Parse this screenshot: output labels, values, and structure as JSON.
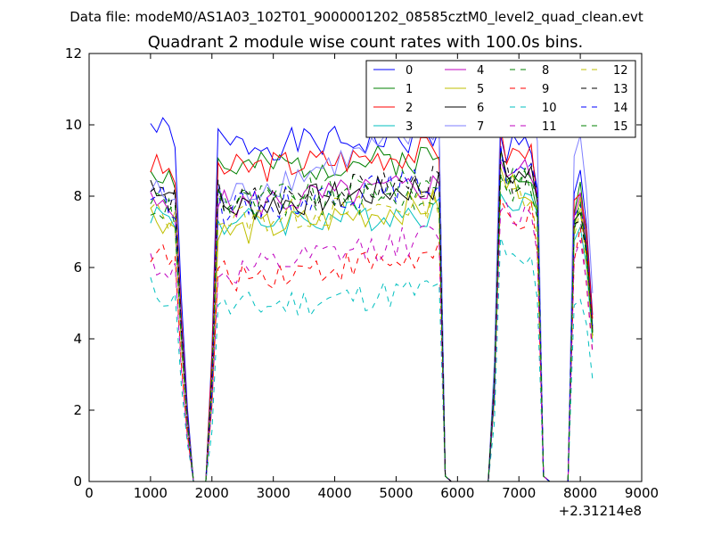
{
  "header": {
    "suptitle": "Data file: modeM0/AS1A03_102T01_9000001202_08585cztM0_level2_quad_clean.evt"
  },
  "chart_data": {
    "type": "line",
    "title": "Quadrant 2 module wise count rates with 100.0s bins.",
    "xlabel": "",
    "ylabel": "",
    "x_offset_label": "+2.31214e8",
    "xlim": [
      0,
      9000
    ],
    "ylim": [
      0,
      12
    ],
    "xticks": [
      0,
      1000,
      2000,
      3000,
      4000,
      5000,
      6000,
      7000,
      8000,
      9000
    ],
    "yticks": [
      0,
      2,
      4,
      6,
      8,
      10,
      12
    ],
    "grid": false,
    "legend_placement": "top-right",
    "legend_columns": 4,
    "x": [
      1000,
      1100,
      1200,
      1300,
      1400,
      1500,
      1600,
      1700,
      1800,
      1900,
      2000,
      2100,
      2200,
      2300,
      2400,
      2500,
      2600,
      2700,
      2800,
      2900,
      3000,
      3100,
      3200,
      3300,
      3400,
      3500,
      3600,
      3700,
      3800,
      3900,
      4000,
      4100,
      4200,
      4300,
      4400,
      4500,
      4600,
      4700,
      4800,
      4900,
      5000,
      5100,
      5200,
      5300,
      5400,
      5500,
      5600,
      5700,
      5800,
      5900,
      6000,
      6100,
      6200,
      6300,
      6400,
      6500,
      6600,
      6700,
      6800,
      6900,
      7000,
      7100,
      7200,
      7300,
      7400,
      7500,
      7600,
      7700,
      7800,
      7900,
      8000,
      8100,
      8200
    ],
    "segments": [
      {
        "start": 0,
        "end": 6,
        "dir": "down"
      },
      {
        "start": 7,
        "end": 9,
        "dir": "zero"
      },
      {
        "start": 10,
        "end": 47,
        "dir": "middle"
      },
      {
        "start": 48,
        "end": 48,
        "dir": "drop"
      },
      {
        "start": 49,
        "end": 55,
        "dir": "zero"
      },
      {
        "start": 56,
        "end": 63,
        "dir": "middle"
      },
      {
        "start": 64,
        "end": 64,
        "dir": "drop"
      },
      {
        "start": 65,
        "end": 68,
        "dir": "zero"
      },
      {
        "start": 69,
        "end": 72,
        "dir": "up"
      }
    ],
    "series": [
      {
        "name": "0",
        "color": "#0000ff",
        "dash": "solid",
        "levels": [
          10.0,
          9.4,
          9.3,
          9.6,
          8.9
        ],
        "seed": 1
      },
      {
        "name": "1",
        "color": "#008000",
        "dash": "solid",
        "levels": [
          8.8,
          8.7,
          8.6,
          9.1,
          8.3
        ],
        "seed": 2
      },
      {
        "name": "2",
        "color": "#ff0000",
        "dash": "solid",
        "levels": [
          8.9,
          8.7,
          9.0,
          9.3,
          8.7
        ],
        "seed": 3
      },
      {
        "name": "3",
        "color": "#00bfbf",
        "dash": "solid",
        "levels": [
          7.6,
          7.2,
          7.2,
          7.6,
          7.5
        ],
        "seed": 4
      },
      {
        "name": "4",
        "color": "#bf00bf",
        "dash": "solid",
        "levels": [
          7.8,
          7.7,
          7.8,
          8.3,
          8.2
        ],
        "seed": 5
      },
      {
        "name": "5",
        "color": "#bfbf00",
        "dash": "solid",
        "levels": [
          7.5,
          6.9,
          7.3,
          7.8,
          7.8
        ],
        "seed": 6
      },
      {
        "name": "6",
        "color": "#000000",
        "dash": "solid",
        "levels": [
          8.4,
          7.6,
          7.6,
          8.3,
          8.1
        ],
        "seed": 7
      },
      {
        "name": "7",
        "color": "#7f7fff",
        "dash": "solid",
        "levels": [
          8.2,
          7.8,
          7.7,
          9.9,
          10.0
        ],
        "seed": 8
      },
      {
        "name": "8",
        "color": "#008000",
        "dash": "dashed",
        "levels": [
          8.0,
          7.8,
          7.6,
          8.4,
          7.8
        ],
        "seed": 9
      },
      {
        "name": "9",
        "color": "#ff0000",
        "dash": "dashed",
        "levels": [
          6.5,
          5.7,
          5.9,
          6.3,
          6.9
        ],
        "seed": 10
      },
      {
        "name": "10",
        "color": "#00bfbf",
        "dash": "dashed",
        "levels": [
          5.4,
          4.8,
          5.0,
          5.4,
          5.6
        ],
        "seed": 11
      },
      {
        "name": "11",
        "color": "#bf00bf",
        "dash": "dashed",
        "levels": [
          6.2,
          5.7,
          5.9,
          6.9,
          7.0
        ],
        "seed": 12
      },
      {
        "name": "12",
        "color": "#bfbf00",
        "dash": "dashed",
        "levels": [
          7.6,
          7.3,
          7.4,
          7.8,
          7.6
        ],
        "seed": 13
      },
      {
        "name": "13",
        "color": "#000000",
        "dash": "dashed",
        "levels": [
          8.2,
          7.8,
          7.6,
          8.4,
          8.0
        ],
        "seed": 14
      },
      {
        "name": "14",
        "color": "#0000ff",
        "dash": "dashed",
        "levels": [
          8.1,
          7.6,
          7.3,
          8.4,
          8.2
        ],
        "seed": 15
      },
      {
        "name": "15",
        "color": "#008000",
        "dash": "dashed",
        "levels": [
          7.8,
          7.7,
          7.6,
          8.0,
          8.0
        ],
        "seed": 16
      }
    ]
  }
}
